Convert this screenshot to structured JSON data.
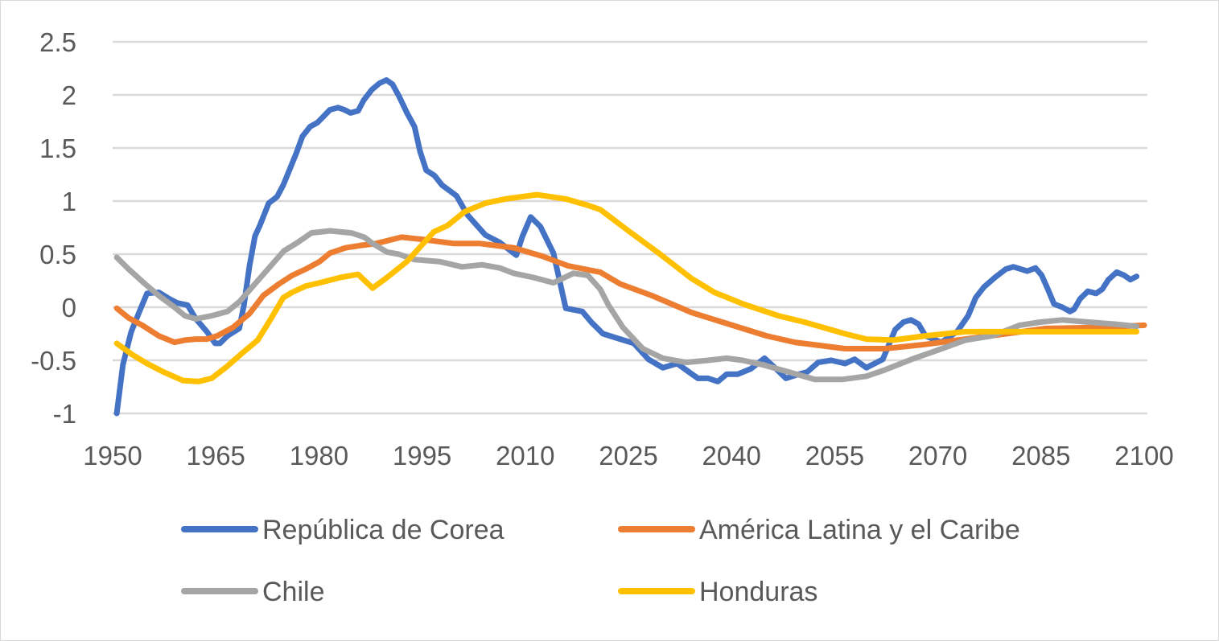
{
  "chart_data": {
    "type": "line",
    "title": "",
    "xlabel": "",
    "ylabel": "",
    "xlim": [
      1950,
      2100
    ],
    "ylim": [
      -1,
      2.5
    ],
    "x_ticks": [
      "1950",
      "1965",
      "1980",
      "1995",
      "2010",
      "2025",
      "2040",
      "2055",
      "2070",
      "2085",
      "2100"
    ],
    "y_ticks": [
      "2.5",
      "2",
      "1.5",
      "1",
      "0.5",
      "0",
      "-0.5",
      "-1"
    ],
    "grid": "horizontal",
    "legend_position": "bottom",
    "series": [
      {
        "name": "República de Corea",
        "color": "#4472C4",
        "points": [
          [
            1950.6,
            -1.0
          ],
          [
            1951.5,
            -0.54
          ],
          [
            1952.7,
            -0.23
          ],
          [
            1953.9,
            -0.04
          ],
          [
            1955.0,
            0.13
          ],
          [
            1956.7,
            0.14
          ],
          [
            1958.2,
            0.08
          ],
          [
            1959.4,
            0.04
          ],
          [
            1960.9,
            0.02
          ],
          [
            1962.1,
            -0.11
          ],
          [
            1963.7,
            -0.23
          ],
          [
            1964.9,
            -0.34
          ],
          [
            1965.6,
            -0.34
          ],
          [
            1966.7,
            -0.27
          ],
          [
            1968.4,
            -0.2
          ],
          [
            1969.1,
            0.02
          ],
          [
            1969.9,
            0.39
          ],
          [
            1970.7,
            0.67
          ],
          [
            1971.4,
            0.77
          ],
          [
            1972.7,
            0.98
          ],
          [
            1973.9,
            1.04
          ],
          [
            1974.8,
            1.15
          ],
          [
            1975.7,
            1.29
          ],
          [
            1976.7,
            1.45
          ],
          [
            1977.6,
            1.61
          ],
          [
            1978.7,
            1.7
          ],
          [
            1979.8,
            1.74
          ],
          [
            1980.7,
            1.8
          ],
          [
            1981.6,
            1.86
          ],
          [
            1982.8,
            1.88
          ],
          [
            1983.7,
            1.86
          ],
          [
            1984.6,
            1.83
          ],
          [
            1985.7,
            1.85
          ],
          [
            1986.5,
            1.95
          ],
          [
            1987.7,
            2.05
          ],
          [
            1988.8,
            2.11
          ],
          [
            1989.8,
            2.14
          ],
          [
            1990.7,
            2.1
          ],
          [
            1991.7,
            1.98
          ],
          [
            1992.8,
            1.83
          ],
          [
            1993.9,
            1.7
          ],
          [
            1994.7,
            1.47
          ],
          [
            1995.6,
            1.29
          ],
          [
            1996.8,
            1.24
          ],
          [
            1997.9,
            1.15
          ],
          [
            2000.0,
            1.05
          ],
          [
            2001.6,
            0.87
          ],
          [
            2004.2,
            0.68
          ],
          [
            2006.3,
            0.61
          ],
          [
            2008.7,
            0.49
          ],
          [
            2009.6,
            0.67
          ],
          [
            2010.8,
            0.85
          ],
          [
            2012.2,
            0.76
          ],
          [
            2014.1,
            0.51
          ],
          [
            2015.9,
            -0.01
          ],
          [
            2018.3,
            -0.04
          ],
          [
            2019.6,
            -0.14
          ],
          [
            2021.3,
            -0.25
          ],
          [
            2023.8,
            -0.3
          ],
          [
            2025.8,
            -0.34
          ],
          [
            2027.9,
            -0.49
          ],
          [
            2030.0,
            -0.57
          ],
          [
            2032.1,
            -0.53
          ],
          [
            2033.8,
            -0.61
          ],
          [
            2035.1,
            -0.67
          ],
          [
            2036.6,
            -0.67
          ],
          [
            2038.0,
            -0.7
          ],
          [
            2039.3,
            -0.63
          ],
          [
            2040.9,
            -0.63
          ],
          [
            2042.8,
            -0.58
          ],
          [
            2044.8,
            -0.48
          ],
          [
            2046.3,
            -0.57
          ],
          [
            2047.9,
            -0.67
          ],
          [
            2049.8,
            -0.63
          ],
          [
            2051.0,
            -0.61
          ],
          [
            2052.6,
            -0.52
          ],
          [
            2054.5,
            -0.5
          ],
          [
            2056.5,
            -0.53
          ],
          [
            2057.9,
            -0.49
          ],
          [
            2059.6,
            -0.57
          ],
          [
            2062.0,
            -0.49
          ],
          [
            2063.8,
            -0.21
          ],
          [
            2065.0,
            -0.14
          ],
          [
            2066.1,
            -0.12
          ],
          [
            2067.2,
            -0.16
          ],
          [
            2068.2,
            -0.27
          ],
          [
            2070.5,
            -0.33
          ],
          [
            2072.8,
            -0.23
          ],
          [
            2074.4,
            -0.08
          ],
          [
            2075.5,
            0.09
          ],
          [
            2076.7,
            0.19
          ],
          [
            2078.3,
            0.28
          ],
          [
            2079.9,
            0.36
          ],
          [
            2081.0,
            0.38
          ],
          [
            2083.0,
            0.34
          ],
          [
            2084.2,
            0.37
          ],
          [
            2085.1,
            0.3
          ],
          [
            2086.0,
            0.17
          ],
          [
            2086.9,
            0.03
          ],
          [
            2088.1,
            0.0
          ],
          [
            2089.2,
            -0.04
          ],
          [
            2089.8,
            -0.02
          ],
          [
            2090.7,
            0.08
          ],
          [
            2091.8,
            0.15
          ],
          [
            2093.0,
            0.13
          ],
          [
            2093.9,
            0.17
          ],
          [
            2094.8,
            0.26
          ],
          [
            2096.0,
            0.33
          ],
          [
            2097.1,
            0.3
          ],
          [
            2098.0,
            0.26
          ],
          [
            2098.9,
            0.29
          ]
        ]
      },
      {
        "name": "América Latina y el Caribe",
        "color": "#ED7D31",
        "points": [
          [
            1950.6,
            -0.01
          ],
          [
            1952.3,
            -0.1
          ],
          [
            1954.3,
            -0.17
          ],
          [
            1956.7,
            -0.27
          ],
          [
            1959.0,
            -0.33
          ],
          [
            1960.5,
            -0.31
          ],
          [
            1962.1,
            -0.3
          ],
          [
            1963.7,
            -0.3
          ],
          [
            1965.2,
            -0.27
          ],
          [
            1967.5,
            -0.19
          ],
          [
            1969.9,
            -0.06
          ],
          [
            1971.9,
            0.11
          ],
          [
            1974.2,
            0.22
          ],
          [
            1976.1,
            0.3
          ],
          [
            1978.1,
            0.36
          ],
          [
            1980.1,
            0.43
          ],
          [
            1981.6,
            0.51
          ],
          [
            1983.9,
            0.56
          ],
          [
            1985.9,
            0.58
          ],
          [
            1988.3,
            0.6
          ],
          [
            1992.0,
            0.66
          ],
          [
            1994.9,
            0.64
          ],
          [
            1999.6,
            0.6
          ],
          [
            2003.4,
            0.6
          ],
          [
            2008.3,
            0.56
          ],
          [
            2012.5,
            0.48
          ],
          [
            2016.2,
            0.39
          ],
          [
            2020.9,
            0.33
          ],
          [
            2023.8,
            0.22
          ],
          [
            2028.4,
            0.11
          ],
          [
            2034.2,
            -0.05
          ],
          [
            2040.1,
            -0.17
          ],
          [
            2045.1,
            -0.27
          ],
          [
            2049.2,
            -0.33
          ],
          [
            2052.8,
            -0.36
          ],
          [
            2056.5,
            -0.39
          ],
          [
            2062.3,
            -0.39
          ],
          [
            2068.2,
            -0.35
          ],
          [
            2074.0,
            -0.3
          ],
          [
            2079.9,
            -0.25
          ],
          [
            2085.7,
            -0.2
          ],
          [
            2093.6,
            -0.19
          ],
          [
            2100.0,
            -0.17
          ]
        ]
      },
      {
        "name": "Chile",
        "color": "#A5A5A5",
        "points": [
          [
            1950.6,
            0.47
          ],
          [
            1952.3,
            0.36
          ],
          [
            1954.7,
            0.22
          ],
          [
            1956.7,
            0.11
          ],
          [
            1959.0,
            0.0
          ],
          [
            1960.5,
            -0.08
          ],
          [
            1962.1,
            -0.11
          ],
          [
            1964.4,
            -0.08
          ],
          [
            1966.7,
            -0.04
          ],
          [
            1968.4,
            0.05
          ],
          [
            1970.7,
            0.22
          ],
          [
            1973.0,
            0.39
          ],
          [
            1974.9,
            0.53
          ],
          [
            1976.9,
            0.61
          ],
          [
            1978.9,
            0.7
          ],
          [
            1981.6,
            0.72
          ],
          [
            1984.7,
            0.7
          ],
          [
            1986.6,
            0.66
          ],
          [
            1987.8,
            0.6
          ],
          [
            1989.9,
            0.52
          ],
          [
            1991.6,
            0.5
          ],
          [
            1993.8,
            0.45
          ],
          [
            1997.5,
            0.43
          ],
          [
            2000.8,
            0.38
          ],
          [
            2003.7,
            0.4
          ],
          [
            2006.3,
            0.37
          ],
          [
            2008.3,
            0.32
          ],
          [
            2011.2,
            0.28
          ],
          [
            2014.1,
            0.23
          ],
          [
            2017.0,
            0.32
          ],
          [
            2019.1,
            0.3
          ],
          [
            2020.9,
            0.17
          ],
          [
            2022.1,
            0.02
          ],
          [
            2024.2,
            -0.19
          ],
          [
            2027.1,
            -0.39
          ],
          [
            2030.0,
            -0.48
          ],
          [
            2033.4,
            -0.52
          ],
          [
            2036.6,
            -0.5
          ],
          [
            2039.3,
            -0.48
          ],
          [
            2041.6,
            -0.5
          ],
          [
            2044.4,
            -0.54
          ],
          [
            2048.3,
            -0.61
          ],
          [
            2052.1,
            -0.68
          ],
          [
            2056.1,
            -0.68
          ],
          [
            2059.6,
            -0.65
          ],
          [
            2062.3,
            -0.59
          ],
          [
            2066.2,
            -0.49
          ],
          [
            2069.3,
            -0.42
          ],
          [
            2074.0,
            -0.31
          ],
          [
            2077.9,
            -0.27
          ],
          [
            2081.9,
            -0.17
          ],
          [
            2084.9,
            -0.14
          ],
          [
            2088.1,
            -0.12
          ],
          [
            2091.9,
            -0.14
          ],
          [
            2095.9,
            -0.16
          ],
          [
            2098.9,
            -0.18
          ]
        ]
      },
      {
        "name": "Honduras",
        "color": "#FFC000",
        "points": [
          [
            1950.6,
            -0.34
          ],
          [
            1952.7,
            -0.44
          ],
          [
            1955.0,
            -0.53
          ],
          [
            1957.4,
            -0.61
          ],
          [
            1960.2,
            -0.69
          ],
          [
            1962.5,
            -0.7
          ],
          [
            1964.4,
            -0.67
          ],
          [
            1966.4,
            -0.57
          ],
          [
            1968.7,
            -0.44
          ],
          [
            1971.1,
            -0.31
          ],
          [
            1973.0,
            -0.11
          ],
          [
            1974.8,
            0.09
          ],
          [
            1976.1,
            0.14
          ],
          [
            1978.1,
            0.2
          ],
          [
            1980.1,
            0.23
          ],
          [
            1983.1,
            0.28
          ],
          [
            1985.7,
            0.31
          ],
          [
            1987.8,
            0.18
          ],
          [
            1989.9,
            0.28
          ],
          [
            1992.8,
            0.43
          ],
          [
            1996.7,
            0.71
          ],
          [
            1998.7,
            0.77
          ],
          [
            2001.2,
            0.9
          ],
          [
            2004.2,
            0.98
          ],
          [
            2007.1,
            1.02
          ],
          [
            2011.7,
            1.06
          ],
          [
            2015.9,
            1.02
          ],
          [
            2019.1,
            0.96
          ],
          [
            2020.9,
            0.92
          ],
          [
            2025.0,
            0.72
          ],
          [
            2029.2,
            0.52
          ],
          [
            2034.2,
            0.27
          ],
          [
            2037.5,
            0.14
          ],
          [
            2041.7,
            0.03
          ],
          [
            2046.8,
            -0.08
          ],
          [
            2050.6,
            -0.14
          ],
          [
            2053.8,
            -0.2
          ],
          [
            2056.5,
            -0.25
          ],
          [
            2059.6,
            -0.3
          ],
          [
            2063.5,
            -0.31
          ],
          [
            2068.2,
            -0.27
          ],
          [
            2074.0,
            -0.23
          ],
          [
            2079.9,
            -0.23
          ],
          [
            2089.6,
            -0.23
          ],
          [
            2098.9,
            -0.23
          ]
        ]
      }
    ]
  }
}
